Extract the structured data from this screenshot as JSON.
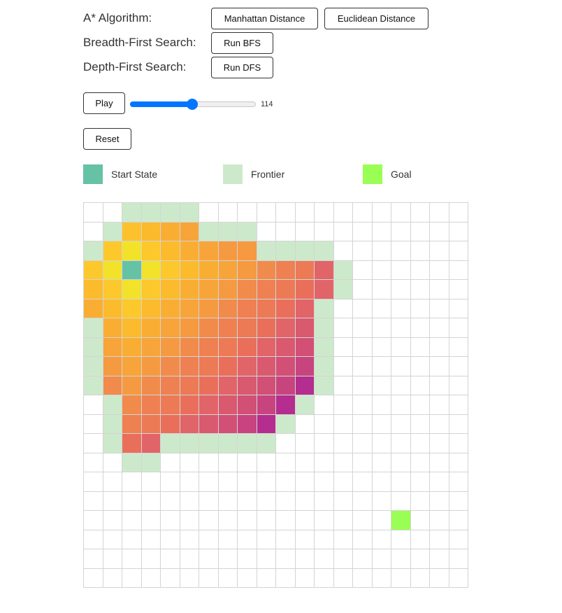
{
  "controls": {
    "astar_label": "A* Algorithm:",
    "bfs_label": "Breadth-First Search:",
    "dfs_label": "Depth-First Search:",
    "manhattan_button": "Manhattan Distance",
    "euclidean_button": "Euclidean Distance",
    "bfs_button": "Run BFS",
    "dfs_button": "Run DFS",
    "play_button": "Play",
    "reset_button": "Reset",
    "slider": {
      "value": 114,
      "min": 0,
      "max": 230,
      "display": "114"
    }
  },
  "legend": [
    {
      "label": "Start State",
      "color": "#66c2a5"
    },
    {
      "label": "Frontier",
      "color": "#cde9cb"
    },
    {
      "label": "Goal",
      "color": "#99ff55"
    }
  ],
  "grid": {
    "rows": 20,
    "cols": 20,
    "start": [
      3,
      2
    ],
    "goal": [
      16,
      16
    ],
    "frontier_color": "#cde9cb",
    "start_color": "#66c2a5",
    "goal_color": "#99ff55",
    "frontier": [
      [
        0,
        2
      ],
      [
        0,
        3
      ],
      [
        0,
        4
      ],
      [
        0,
        5
      ],
      [
        1,
        1
      ],
      [
        1,
        6
      ],
      [
        1,
        7
      ],
      [
        1,
        8
      ],
      [
        2,
        0
      ],
      [
        2,
        9
      ],
      [
        2,
        10
      ],
      [
        2,
        11
      ],
      [
        2,
        12
      ],
      [
        3,
        13
      ],
      [
        4,
        13
      ],
      [
        5,
        12
      ],
      [
        6,
        0
      ],
      [
        6,
        12
      ],
      [
        7,
        0
      ],
      [
        7,
        12
      ],
      [
        8,
        0
      ],
      [
        8,
        12
      ],
      [
        9,
        0
      ],
      [
        9,
        12
      ],
      [
        10,
        1
      ],
      [
        10,
        11
      ],
      [
        11,
        1
      ],
      [
        11,
        10
      ],
      [
        12,
        1
      ],
      [
        12,
        4
      ],
      [
        12,
        5
      ],
      [
        12,
        6
      ],
      [
        12,
        7
      ],
      [
        12,
        8
      ],
      [
        12,
        9
      ],
      [
        13,
        2
      ],
      [
        13,
        3
      ]
    ],
    "explored": [
      [
        1,
        2,
        "#fcc12c"
      ],
      [
        1,
        3,
        "#fbb92c"
      ],
      [
        1,
        4,
        "#f9ae33"
      ],
      [
        1,
        5,
        "#f7a43a"
      ],
      [
        2,
        1,
        "#fdc82b"
      ],
      [
        2,
        2,
        "#f2e22a"
      ],
      [
        2,
        3,
        "#fcc82b"
      ],
      [
        2,
        4,
        "#fbbb2c"
      ],
      [
        2,
        5,
        "#f9ae33"
      ],
      [
        2,
        6,
        "#f7a43a"
      ],
      [
        2,
        7,
        "#f59a41"
      ],
      [
        2,
        8,
        "#f59a41"
      ],
      [
        3,
        0,
        "#fdc82b"
      ],
      [
        3,
        1,
        "#f2e22a"
      ],
      [
        3,
        3,
        "#f2e22a"
      ],
      [
        3,
        4,
        "#fcc82b"
      ],
      [
        3,
        5,
        "#fbbb2c"
      ],
      [
        3,
        6,
        "#f9ae33"
      ],
      [
        3,
        7,
        "#f7a43a"
      ],
      [
        3,
        8,
        "#f59a41"
      ],
      [
        3,
        9,
        "#f18b4c"
      ],
      [
        3,
        10,
        "#ee8052"
      ],
      [
        3,
        11,
        "#ec7a55"
      ],
      [
        3,
        12,
        "#e16469"
      ],
      [
        4,
        0,
        "#fbbb2c"
      ],
      [
        4,
        1,
        "#fdc82b"
      ],
      [
        4,
        2,
        "#f2e22a"
      ],
      [
        4,
        3,
        "#fcc82b"
      ],
      [
        4,
        4,
        "#fbbb2c"
      ],
      [
        4,
        5,
        "#f9ae33"
      ],
      [
        4,
        6,
        "#f7a43a"
      ],
      [
        4,
        7,
        "#f59a41"
      ],
      [
        4,
        8,
        "#f18b4c"
      ],
      [
        4,
        9,
        "#ee8052"
      ],
      [
        4,
        10,
        "#ec7a55"
      ],
      [
        4,
        11,
        "#e96f5b"
      ],
      [
        4,
        12,
        "#e16469"
      ],
      [
        5,
        0,
        "#f9ae33"
      ],
      [
        5,
        1,
        "#fbbb2c"
      ],
      [
        5,
        2,
        "#fcc82b"
      ],
      [
        5,
        3,
        "#fbbb2c"
      ],
      [
        5,
        4,
        "#f9ae33"
      ],
      [
        5,
        5,
        "#f7a43a"
      ],
      [
        5,
        6,
        "#f59a41"
      ],
      [
        5,
        7,
        "#f18b4c"
      ],
      [
        5,
        8,
        "#ee8052"
      ],
      [
        5,
        9,
        "#ec7a55"
      ],
      [
        5,
        10,
        "#e96f5b"
      ],
      [
        5,
        11,
        "#e16469"
      ],
      [
        6,
        1,
        "#f9ae33"
      ],
      [
        6,
        2,
        "#fbbb2c"
      ],
      [
        6,
        3,
        "#f9ae33"
      ],
      [
        6,
        4,
        "#f7a43a"
      ],
      [
        6,
        5,
        "#f59a41"
      ],
      [
        6,
        6,
        "#f18b4c"
      ],
      [
        6,
        7,
        "#ee8052"
      ],
      [
        6,
        8,
        "#ec7a55"
      ],
      [
        6,
        9,
        "#e96f5b"
      ],
      [
        6,
        10,
        "#e16469"
      ],
      [
        6,
        11,
        "#d9596f"
      ],
      [
        7,
        1,
        "#f7a43a"
      ],
      [
        7,
        2,
        "#f9ae33"
      ],
      [
        7,
        3,
        "#f7a43a"
      ],
      [
        7,
        4,
        "#f59a41"
      ],
      [
        7,
        5,
        "#f18b4c"
      ],
      [
        7,
        6,
        "#ee8052"
      ],
      [
        7,
        7,
        "#ec7a55"
      ],
      [
        7,
        8,
        "#e96f5b"
      ],
      [
        7,
        9,
        "#e16469"
      ],
      [
        7,
        10,
        "#d9596f"
      ],
      [
        7,
        11,
        "#d24f76"
      ],
      [
        8,
        1,
        "#f59a41"
      ],
      [
        8,
        2,
        "#f7a43a"
      ],
      [
        8,
        3,
        "#f59a41"
      ],
      [
        8,
        4,
        "#f18b4c"
      ],
      [
        8,
        5,
        "#ee8052"
      ],
      [
        8,
        6,
        "#ec7a55"
      ],
      [
        8,
        7,
        "#e96f5b"
      ],
      [
        8,
        8,
        "#e16469"
      ],
      [
        8,
        9,
        "#d9596f"
      ],
      [
        8,
        10,
        "#d24f76"
      ],
      [
        8,
        11,
        "#c8447f"
      ],
      [
        9,
        1,
        "#f18b4c"
      ],
      [
        9,
        2,
        "#f59a41"
      ],
      [
        9,
        3,
        "#f18b4c"
      ],
      [
        9,
        4,
        "#ee8052"
      ],
      [
        9,
        5,
        "#ec7a55"
      ],
      [
        9,
        6,
        "#e96f5b"
      ],
      [
        9,
        7,
        "#e16469"
      ],
      [
        9,
        8,
        "#d9596f"
      ],
      [
        9,
        9,
        "#d24f76"
      ],
      [
        9,
        10,
        "#c8447f"
      ],
      [
        9,
        11,
        "#b52d8f"
      ],
      [
        10,
        2,
        "#f18b4c"
      ],
      [
        10,
        3,
        "#ee8052"
      ],
      [
        10,
        4,
        "#ec7a55"
      ],
      [
        10,
        5,
        "#e96f5b"
      ],
      [
        10,
        6,
        "#e16469"
      ],
      [
        10,
        7,
        "#d9596f"
      ],
      [
        10,
        8,
        "#d24f76"
      ],
      [
        10,
        9,
        "#c8447f"
      ],
      [
        10,
        10,
        "#b52d8f"
      ],
      [
        11,
        2,
        "#ee8052"
      ],
      [
        11,
        3,
        "#ec7a55"
      ],
      [
        11,
        4,
        "#e96f5b"
      ],
      [
        11,
        5,
        "#e16469"
      ],
      [
        11,
        6,
        "#d9596f"
      ],
      [
        11,
        7,
        "#d24f76"
      ],
      [
        11,
        8,
        "#c8447f"
      ],
      [
        11,
        9,
        "#b52d8f"
      ],
      [
        12,
        2,
        "#e96f5b"
      ],
      [
        12,
        3,
        "#e16469"
      ]
    ]
  }
}
